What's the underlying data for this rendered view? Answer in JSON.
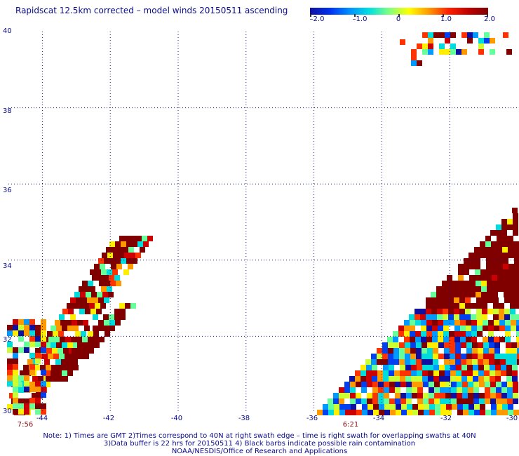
{
  "title": "Rapidscat 12.5km corrected – model winds 20150511 ascending",
  "colorbar": {
    "labels": [
      "–2.0",
      "–1.0",
      "0",
      "1.0",
      "2.0"
    ],
    "values": [
      -2.0,
      -1.0,
      0,
      1.0,
      2.0
    ],
    "colors": [
      "#1010a0",
      "#0030f0",
      "#0090ff",
      "#00e0e0",
      "#80ff80",
      "#ffff00",
      "#ff9900",
      "#ff2000",
      "#c00000",
      "#800000"
    ]
  },
  "map": {
    "lon_range": [
      -45,
      -30
    ],
    "lat_range": [
      30,
      40
    ],
    "y_ticks": [
      "40",
      "38",
      "36",
      "34",
      "32",
      "30"
    ],
    "x_ticks": [
      "-44",
      "-42",
      "-40",
      "-38",
      "-36",
      "-34",
      "-32",
      "-30"
    ],
    "grid": "dotted"
  },
  "swath_times": [
    {
      "label": "7:56",
      "lon": -44.6
    },
    {
      "label": "6:21",
      "lon": -34.9
    }
  ],
  "notes": [
    "Note: 1) Times are GMT 2)Times correspond to 40N at right swath edge – time is right swath for overlapping swaths at 40N",
    "3)Data buffer is 22 hrs for 20150511 4) Black barbs indicate possible rain contamination",
    "NOAA/NESDIS/Office of Research and Applications"
  ]
}
